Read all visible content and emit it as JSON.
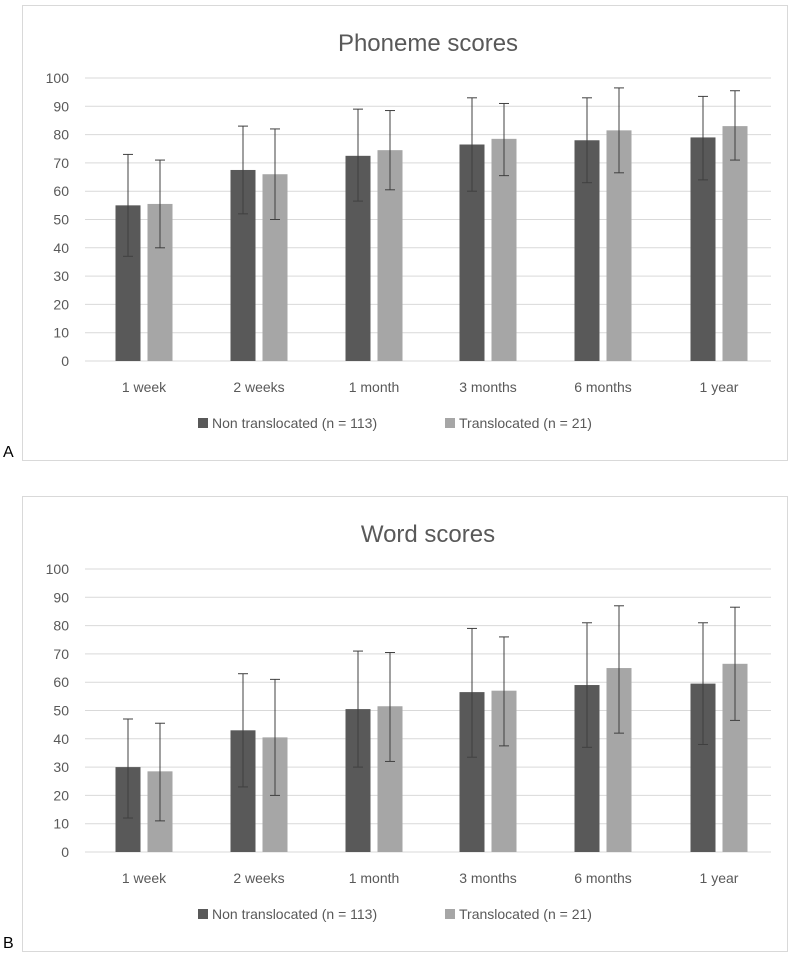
{
  "colors": {
    "non_translocated": "#595959",
    "translocated": "#a6a6a6",
    "grid": "#d9d9d9",
    "text": "#595959",
    "error": "#404040",
    "border": "#d9d9d9"
  },
  "panels": [
    {
      "label": "A"
    },
    {
      "label": "B"
    }
  ],
  "chart_data": [
    {
      "type": "bar",
      "title": "Phoneme scores",
      "xlabel": "",
      "ylabel": "",
      "ylim": [
        0,
        100
      ],
      "yticks": [
        "0",
        "10",
        "20",
        "30",
        "40",
        "50",
        "60",
        "70",
        "80",
        "90",
        "100"
      ],
      "grid": true,
      "legend": "bottom",
      "categories": [
        "1 week",
        "2 weeks",
        "1 month",
        "3 months",
        "6 months",
        "1 year"
      ],
      "series": [
        {
          "name": "Non translocated (n = 113)",
          "values": [
            55,
            67.5,
            72.5,
            76.5,
            78,
            79
          ],
          "error_low": [
            37,
            52,
            56.5,
            60,
            63,
            64
          ],
          "error_high": [
            73,
            83,
            89,
            93,
            93,
            93.5
          ]
        },
        {
          "name": "Translocated (n = 21)",
          "values": [
            55.5,
            66,
            74.5,
            78.5,
            81.5,
            83
          ],
          "error_low": [
            40,
            50,
            60.5,
            65.5,
            66.5,
            71
          ],
          "error_high": [
            71,
            82,
            88.5,
            91,
            96.5,
            95.5
          ]
        }
      ]
    },
    {
      "type": "bar",
      "title": "Word scores",
      "xlabel": "",
      "ylabel": "",
      "ylim": [
        0,
        100
      ],
      "yticks": [
        "0",
        "10",
        "20",
        "30",
        "40",
        "50",
        "60",
        "70",
        "80",
        "90",
        "100"
      ],
      "grid": true,
      "legend": "bottom",
      "categories": [
        "1 week",
        "2 weeks",
        "1 month",
        "3 months",
        "6 months",
        "1 year"
      ],
      "series": [
        {
          "name": "Non translocated (n = 113)",
          "values": [
            30,
            43,
            50.5,
            56.5,
            59,
            59.5
          ],
          "error_low": [
            12,
            23,
            30,
            33.5,
            37,
            38
          ],
          "error_high": [
            47,
            63,
            71,
            79,
            81,
            81
          ]
        },
        {
          "name": "Translocated (n = 21)",
          "values": [
            28.5,
            40.5,
            51.5,
            57,
            65,
            66.5
          ],
          "error_low": [
            11,
            20,
            32,
            37.5,
            42,
            46.5
          ],
          "error_high": [
            45.5,
            61,
            70.5,
            76,
            87,
            86.5
          ]
        }
      ]
    }
  ]
}
